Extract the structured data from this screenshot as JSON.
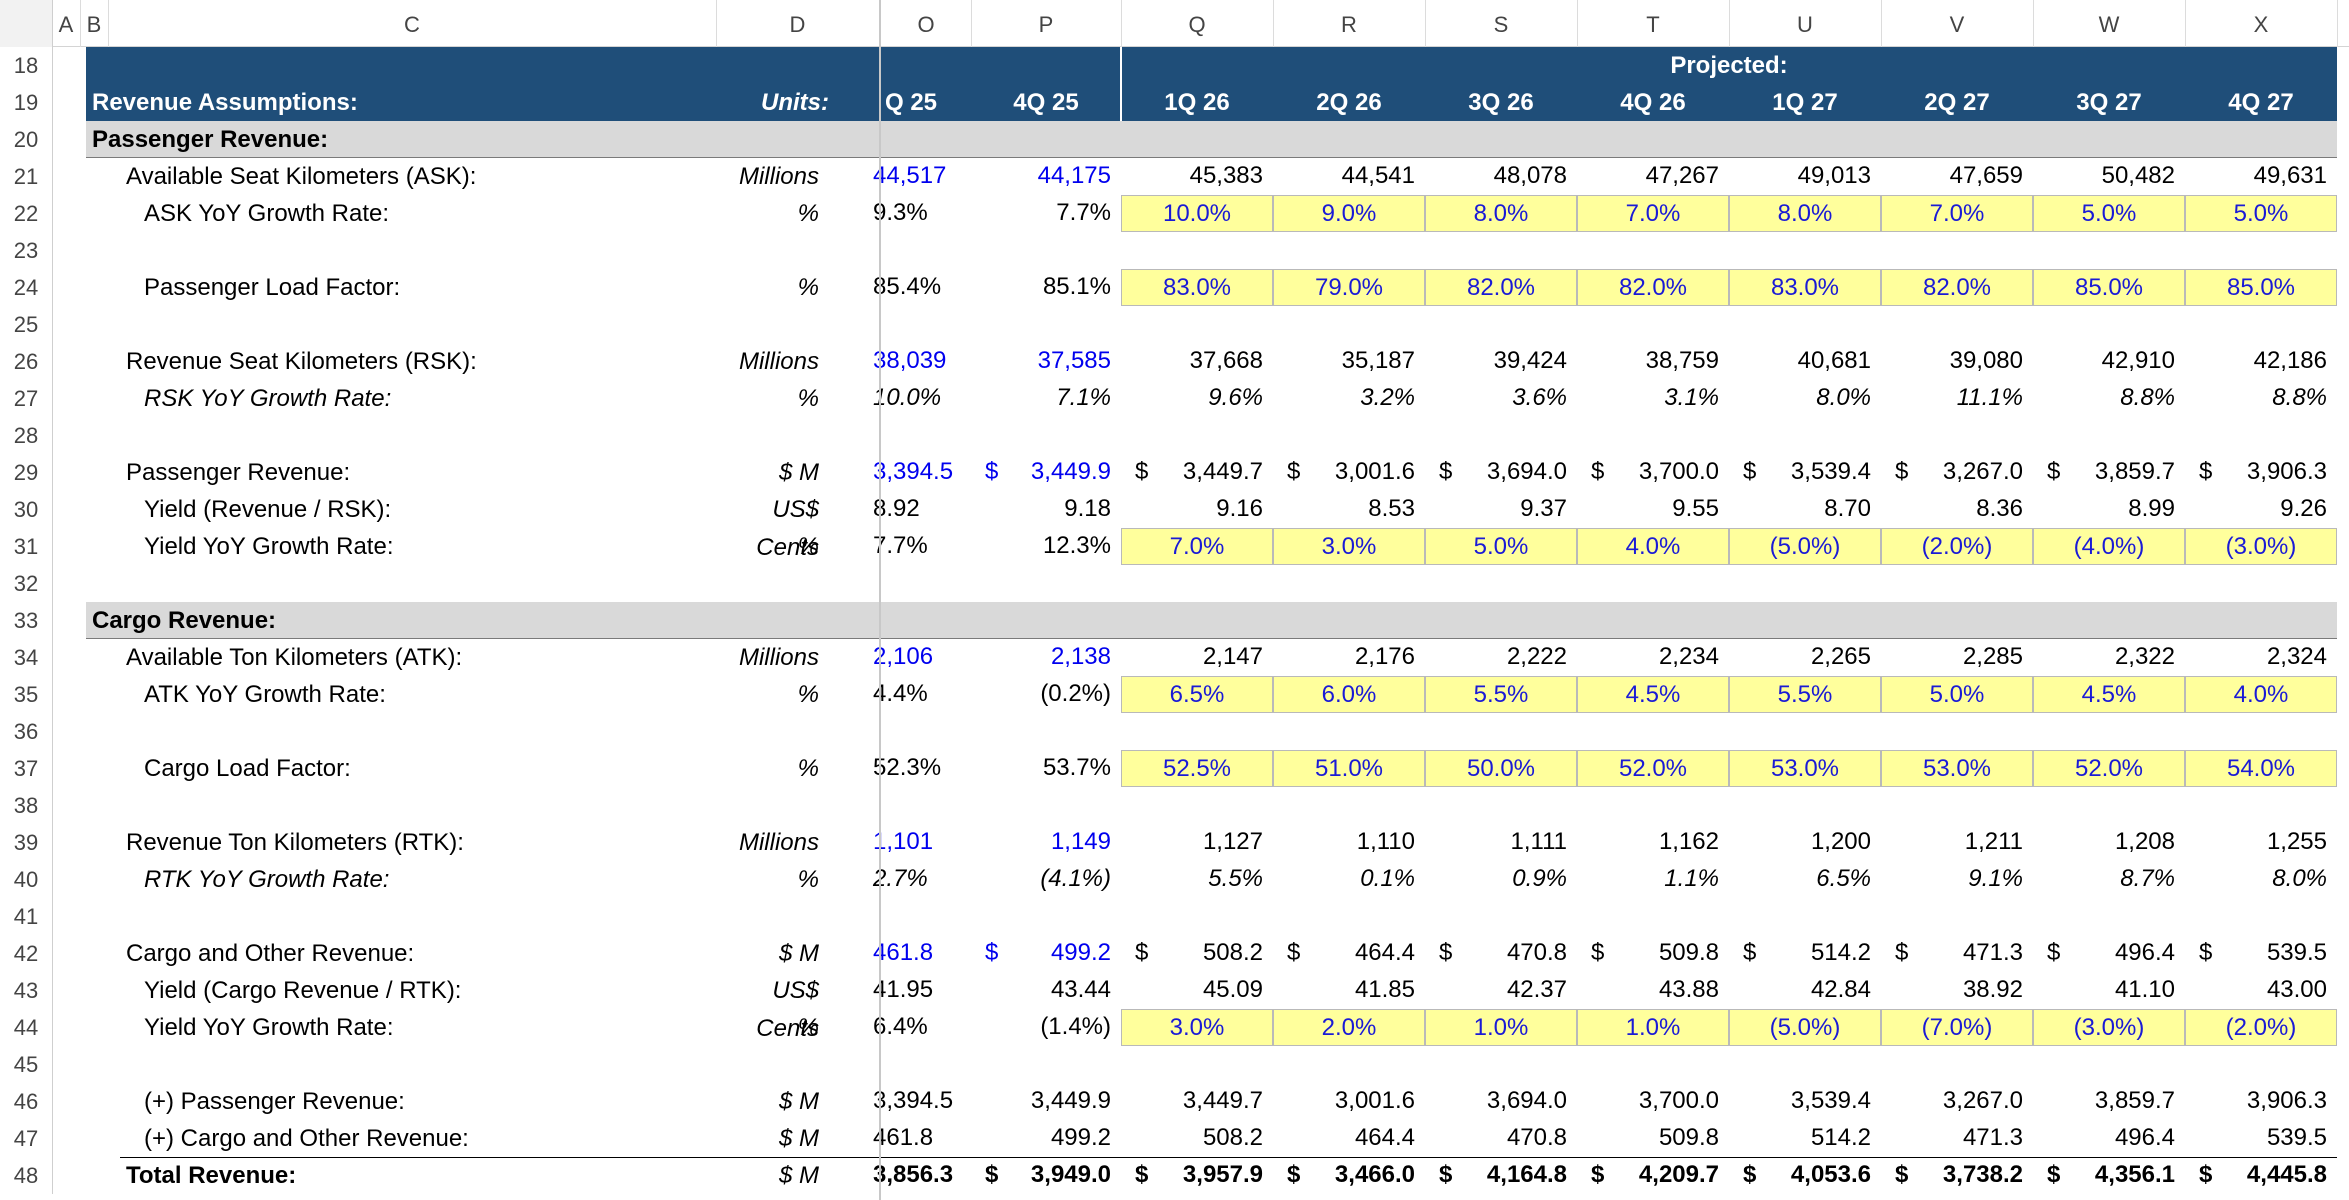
{
  "columns": [
    "A",
    "B",
    "C",
    "D",
    "O",
    "P",
    "Q",
    "R",
    "S",
    "T",
    "U",
    "V",
    "W",
    "X"
  ],
  "row_numbers": [
    18,
    19,
    20,
    21,
    22,
    23,
    24,
    25,
    26,
    27,
    28,
    29,
    30,
    31,
    32,
    33,
    34,
    35,
    36,
    37,
    38,
    39,
    40,
    41,
    42,
    43,
    44,
    45,
    46,
    47,
    48
  ],
  "header": {
    "projected": "Projected:",
    "title": "Revenue Assumptions:",
    "units": "Units:",
    "periods": [
      "Q 25",
      "4Q 25",
      "1Q 26",
      "2Q 26",
      "3Q 26",
      "4Q 26",
      "1Q 27",
      "2Q 27",
      "3Q 27",
      "4Q 27"
    ]
  },
  "rows": [
    {
      "r": 20,
      "label": "Passenger Revenue:",
      "style": "section"
    },
    {
      "r": 21,
      "label": "Available Seat Kilometers (ASK):",
      "indent": 1,
      "unit": "Millions",
      "values": [
        "44,517",
        "44,175",
        "45,383",
        "44,541",
        "48,078",
        "47,267",
        "49,013",
        "47,659",
        "50,482",
        "49,631"
      ],
      "hist_blue": true
    },
    {
      "r": 22,
      "label": "ASK YoY Growth Rate:",
      "indent": 2,
      "unit": "%",
      "values": [
        "9.3%",
        "7.7%",
        "10.0%",
        "9.0%",
        "8.0%",
        "7.0%",
        "8.0%",
        "7.0%",
        "5.0%",
        "5.0%"
      ],
      "input": true
    },
    {
      "r": 23
    },
    {
      "r": 24,
      "label": "Passenger Load Factor:",
      "indent": 2,
      "unit": "%",
      "values": [
        "85.4%",
        "85.1%",
        "83.0%",
        "79.0%",
        "82.0%",
        "82.0%",
        "83.0%",
        "82.0%",
        "85.0%",
        "85.0%"
      ],
      "input": true
    },
    {
      "r": 25
    },
    {
      "r": 26,
      "label": "Revenue Seat Kilometers (RSK):",
      "indent": 1,
      "unit": "Millions",
      "values": [
        "38,039",
        "37,585",
        "37,668",
        "35,187",
        "39,424",
        "38,759",
        "40,681",
        "39,080",
        "42,910",
        "42,186"
      ],
      "hist_blue": true
    },
    {
      "r": 27,
      "label": "RSK YoY Growth Rate:",
      "indent": 2,
      "unit": "%",
      "values": [
        "10.0%",
        "7.1%",
        "9.6%",
        "3.2%",
        "3.6%",
        "3.1%",
        "8.0%",
        "11.1%",
        "8.8%",
        "8.8%"
      ],
      "italic": true
    },
    {
      "r": 28
    },
    {
      "r": 29,
      "label": "Passenger Revenue:",
      "indent": 1,
      "unit": "$ M",
      "values": [
        "3,394.5",
        "3,449.9",
        "3,449.7",
        "3,001.6",
        "3,694.0",
        "3,700.0",
        "3,539.4",
        "3,267.0",
        "3,859.7",
        "3,906.3"
      ],
      "hist_blue": true,
      "dollar": true
    },
    {
      "r": 30,
      "label": "Yield (Revenue / RSK):",
      "indent": 2,
      "unit": "US$ Cents",
      "values": [
        "8.92",
        "9.18",
        "9.16",
        "8.53",
        "9.37",
        "9.55",
        "8.70",
        "8.36",
        "8.99",
        "9.26"
      ]
    },
    {
      "r": 31,
      "label": "Yield YoY Growth Rate:",
      "indent": 2,
      "unit": "%",
      "values": [
        "7.7%",
        "12.3%",
        "7.0%",
        "3.0%",
        "5.0%",
        "4.0%",
        "(5.0%)",
        "(2.0%)",
        "(4.0%)",
        "(3.0%)"
      ],
      "input": true
    },
    {
      "r": 32
    },
    {
      "r": 33,
      "label": "Cargo Revenue:",
      "style": "section"
    },
    {
      "r": 34,
      "label": "Available Ton Kilometers (ATK):",
      "indent": 1,
      "unit": "Millions",
      "values": [
        "2,106",
        "2,138",
        "2,147",
        "2,176",
        "2,222",
        "2,234",
        "2,265",
        "2,285",
        "2,322",
        "2,324"
      ],
      "hist_blue": true
    },
    {
      "r": 35,
      "label": "ATK YoY Growth Rate:",
      "indent": 2,
      "unit": "%",
      "values": [
        "4.4%",
        "(0.2%)",
        "6.5%",
        "6.0%",
        "5.5%",
        "4.5%",
        "5.5%",
        "5.0%",
        "4.5%",
        "4.0%"
      ],
      "input": true
    },
    {
      "r": 36
    },
    {
      "r": 37,
      "label": "Cargo Load Factor:",
      "indent": 2,
      "unit": "%",
      "values": [
        "52.3%",
        "53.7%",
        "52.5%",
        "51.0%",
        "50.0%",
        "52.0%",
        "53.0%",
        "53.0%",
        "52.0%",
        "54.0%"
      ],
      "input": true
    },
    {
      "r": 38
    },
    {
      "r": 39,
      "label": "Revenue Ton Kilometers (RTK):",
      "indent": 1,
      "unit": "Millions",
      "values": [
        "1,101",
        "1,149",
        "1,127",
        "1,110",
        "1,111",
        "1,162",
        "1,200",
        "1,211",
        "1,208",
        "1,255"
      ],
      "hist_blue": true
    },
    {
      "r": 40,
      "label": "RTK YoY Growth Rate:",
      "indent": 2,
      "unit": "%",
      "values": [
        "2.7%",
        "(4.1%)",
        "5.5%",
        "0.1%",
        "0.9%",
        "1.1%",
        "6.5%",
        "9.1%",
        "8.7%",
        "8.0%"
      ],
      "italic": true
    },
    {
      "r": 41
    },
    {
      "r": 42,
      "label": "Cargo and Other Revenue:",
      "indent": 1,
      "unit": "$ M",
      "values": [
        "461.8",
        "499.2",
        "508.2",
        "464.4",
        "470.8",
        "509.8",
        "514.2",
        "471.3",
        "496.4",
        "539.5"
      ],
      "hist_blue": true,
      "dollar": true
    },
    {
      "r": 43,
      "label": "Yield (Cargo Revenue / RTK):",
      "indent": 2,
      "unit": "US$ Cents",
      "values": [
        "41.95",
        "43.44",
        "45.09",
        "41.85",
        "42.37",
        "43.88",
        "42.84",
        "38.92",
        "41.10",
        "43.00"
      ]
    },
    {
      "r": 44,
      "label": "Yield YoY Growth Rate:",
      "indent": 2,
      "unit": "%",
      "values": [
        "6.4%",
        "(1.4%)",
        "3.0%",
        "2.0%",
        "1.0%",
        "1.0%",
        "(5.0%)",
        "(7.0%)",
        "(3.0%)",
        "(2.0%)"
      ],
      "input": true
    },
    {
      "r": 45
    },
    {
      "r": 46,
      "label": "(+) Passenger Revenue:",
      "indent": 2,
      "unit": "$ M",
      "values": [
        "3,394.5",
        "3,449.9",
        "3,449.7",
        "3,001.6",
        "3,694.0",
        "3,700.0",
        "3,539.4",
        "3,267.0",
        "3,859.7",
        "3,906.3"
      ]
    },
    {
      "r": 47,
      "label": "(+) Cargo and Other Revenue:",
      "indent": 2,
      "unit": "$ M",
      "values": [
        "461.8",
        "499.2",
        "508.2",
        "464.4",
        "470.8",
        "509.8",
        "514.2",
        "471.3",
        "496.4",
        "539.5"
      ]
    },
    {
      "r": 48,
      "label": "Total Revenue:",
      "indent": 1,
      "unit": "$ M",
      "values": [
        "3,856.3",
        "3,949.0",
        "3,957.9",
        "3,466.0",
        "4,164.8",
        "4,209.7",
        "4,053.6",
        "3,738.2",
        "4,356.1",
        "4,445.8"
      ],
      "bold": true,
      "dollar": true
    }
  ],
  "colors": {
    "header_bg": "#1f4e79",
    "section_bg": "#d9d9d9",
    "input_bg": "#ffff9c",
    "hist_blue": "#0000ee"
  }
}
